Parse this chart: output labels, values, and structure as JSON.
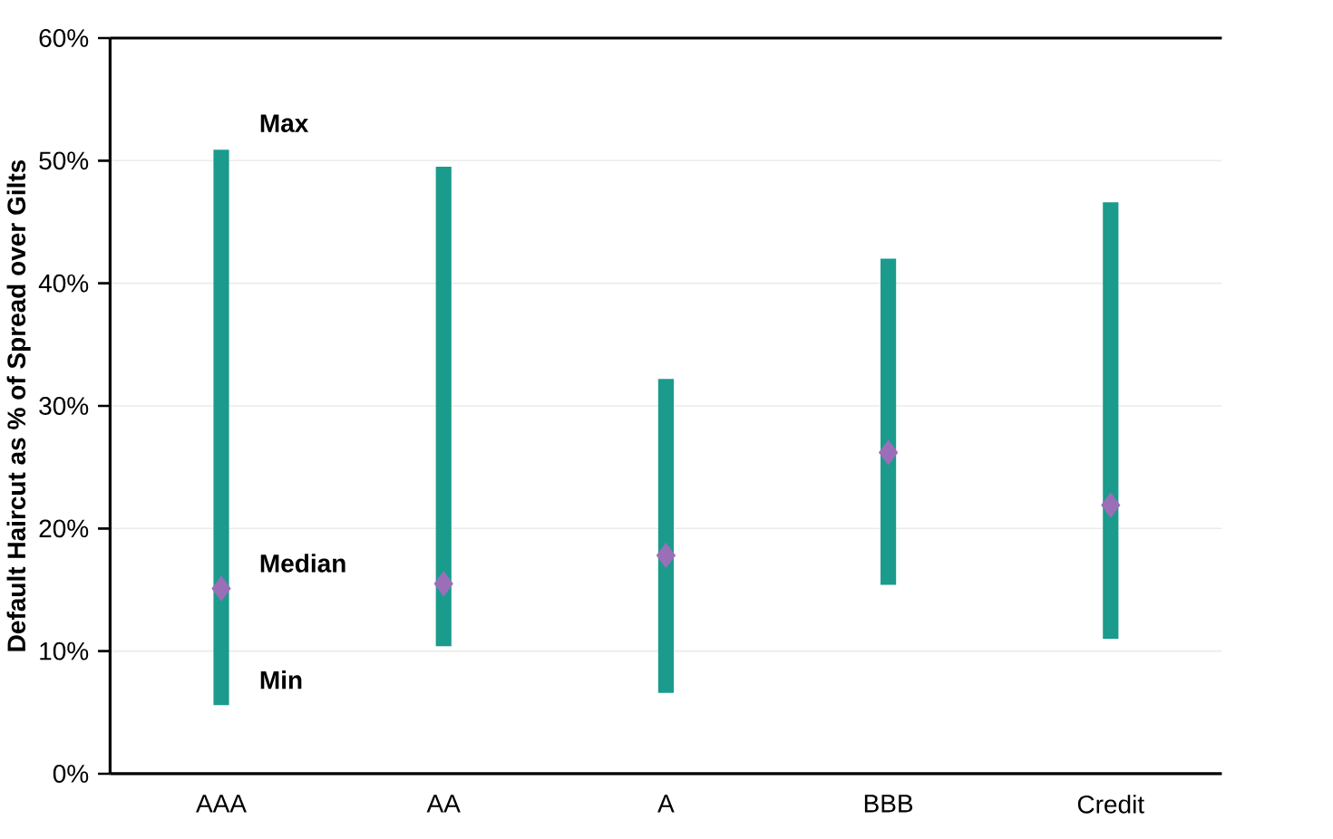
{
  "chart_data": {
    "type": "bar",
    "ylabel": "Default Haircut as % of Spread over Gilts",
    "categories": [
      "AAA",
      "AA",
      "A",
      "BBB",
      "Credit"
    ],
    "series": [
      {
        "color": "#1a9b8c",
        "base": [
          5.6,
          10.4,
          6.6,
          15.4,
          11.0
        ],
        "values": [
          45.3,
          39.1,
          25.6,
          26.6,
          35.6
        ]
      },
      {
        "type": "scatter",
        "color": "#9b6fb8",
        "marker": "diamond",
        "x": [
          "AAA",
          "AA",
          "A",
          "BBB",
          "Credit"
        ],
        "values": [
          15.1,
          15.5,
          17.8,
          26.2,
          21.9
        ]
      }
    ],
    "ylim": [
      0,
      60
    ],
    "yticks": [
      {
        "value": 0,
        "label": "0%"
      },
      {
        "value": 10,
        "label": "10%"
      },
      {
        "value": 20,
        "label": "20%"
      },
      {
        "value": 30,
        "label": "30%"
      },
      {
        "value": 40,
        "label": "40%"
      },
      {
        "value": 50,
        "label": "50%"
      },
      {
        "value": 60,
        "label": "60%"
      }
    ],
    "grid": "y",
    "annotations": [
      {
        "text": "Max",
        "x": "AAA",
        "y": 51
      },
      {
        "text": "Median",
        "x": "AAA",
        "y": 15.1
      },
      {
        "text": "Min",
        "x": "AAA",
        "y": 5.6
      }
    ]
  }
}
